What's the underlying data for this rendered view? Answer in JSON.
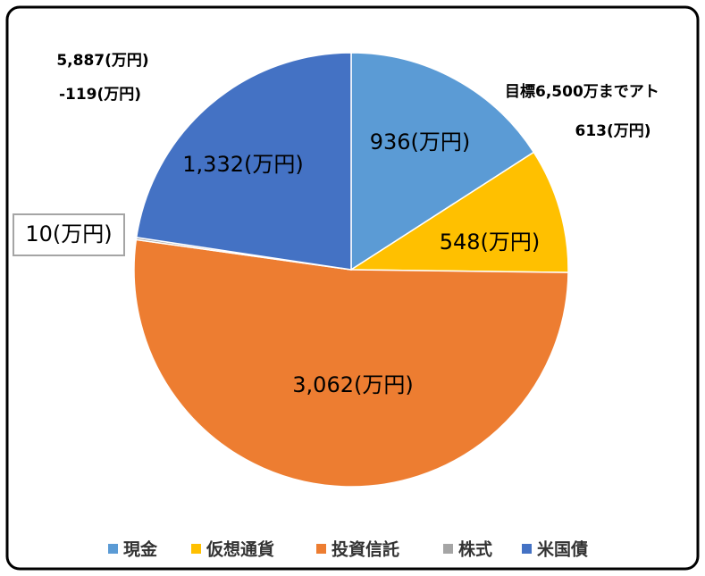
{
  "chart_data": {
    "type": "pie",
    "categories": [
      "現金",
      "仮想通貨",
      "投資信託",
      "株式",
      "米国債"
    ],
    "values": [
      936,
      548,
      3062,
      10,
      1332
    ],
    "value_labels": [
      "936(万円)",
      "548(万円)",
      "3,062(万円)",
      "10(万円)",
      "1,332(万円)"
    ],
    "colors": [
      "#5b9bd5",
      "#ffc000",
      "#ed7d31",
      "#a5a5a5",
      "#4472c4"
    ],
    "annotations": [
      {
        "text": "5,887(万円)",
        "color": "#000000"
      },
      {
        "text": "-119(万円)",
        "color": "#0000cc"
      },
      {
        "text": "目標6,500万までアト",
        "color": "#000000"
      },
      {
        "text": "613(万円)",
        "color": "#000000"
      }
    ],
    "legend": "bottom"
  }
}
